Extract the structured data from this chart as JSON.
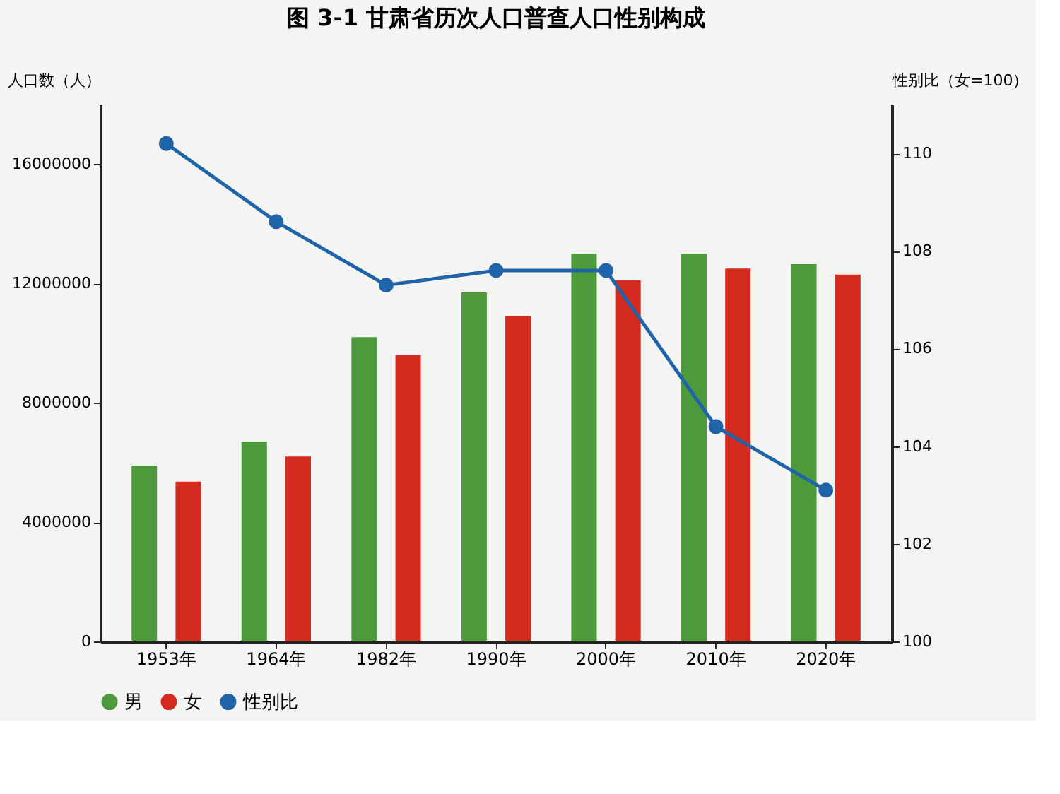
{
  "chart_data": {
    "type": "bar",
    "title": "图 3-1   甘肃省历次人口普查人口性别构成",
    "ylabel": "人口数（人）",
    "y2label": "性别比（女=100）",
    "categories": [
      "1953年",
      "1964年",
      "1982年",
      "1990年",
      "2000年",
      "2010年",
      "2020年"
    ],
    "series": [
      {
        "name": "男",
        "color": "#4c9a3c",
        "values": [
          5900000,
          6700000,
          10200000,
          11700000,
          13000000,
          13000000,
          12650000
        ]
      },
      {
        "name": "女",
        "color": "#d42a20",
        "values": [
          5360000,
          6200000,
          9600000,
          10900000,
          12100000,
          12500000,
          12300000
        ]
      },
      {
        "name": "性别比",
        "type": "line",
        "axis": "y2",
        "color": "#1f63a8",
        "values": [
          110.2,
          108.6,
          107.3,
          107.6,
          107.6,
          104.4,
          103.1
        ]
      }
    ],
    "ylim": [
      0,
      18000000
    ],
    "yticks": [
      0,
      4000000,
      8000000,
      12000000,
      16000000
    ],
    "y2lim": [
      100,
      111
    ],
    "y2ticks": [
      100,
      102,
      104,
      106,
      108,
      110
    ],
    "grid": false,
    "legend": "bottom",
    "marker": "circle"
  }
}
